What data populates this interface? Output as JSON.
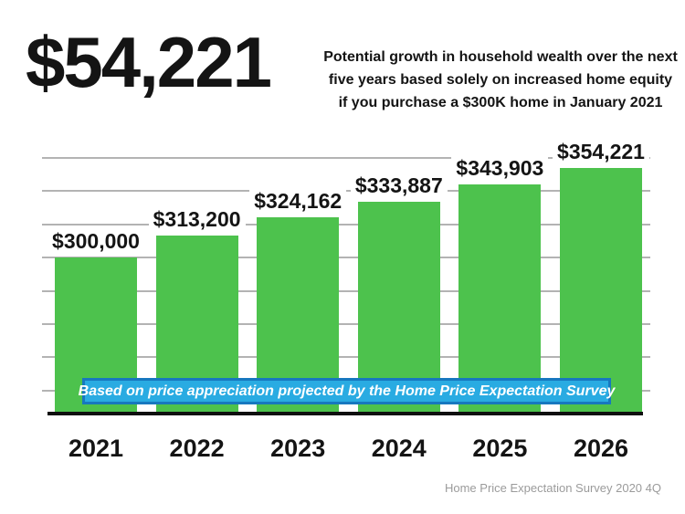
{
  "headline": {
    "value": "$54,221"
  },
  "subtitle_lines": [
    "Potential growth in household wealth over the next",
    "five years based solely on increased home equity",
    "if you purchase a $300K home in January 2021"
  ],
  "banner": {
    "text": "Based on price appreciation projected by the Home Price Expectation Survey",
    "bg_color": "#29abe2",
    "border_color": "#1778bf",
    "text_color": "#ffffff"
  },
  "footer": {
    "source_text": "Home Price Expectation Survey 2020 4Q"
  },
  "colors": {
    "bar_green": "#4dc24d",
    "gridline": "#b3b3b3",
    "axis_line": "#0f0f0f",
    "label_text": "#141414",
    "footer_text": "#9b9b9b"
  },
  "chart_data": {
    "type": "bar",
    "title": "$54,221",
    "subtitle": "Potential growth in household wealth over the next five years based solely on increased home equity if you purchase a $300K home in January 2021",
    "categories": [
      "2021",
      "2022",
      "2023",
      "2024",
      "2025",
      "2026"
    ],
    "values": [
      300000,
      313200,
      324162,
      333887,
      343903,
      354221
    ],
    "value_labels": [
      "$300,000",
      "$313,200",
      "$324,162",
      "$333,887",
      "$343,903",
      "$354,221"
    ],
    "xlabel": "",
    "ylabel": "",
    "ylim": [
      205000,
      365000
    ],
    "gridline_values": [
      220000,
      240000,
      260000,
      280000,
      300000,
      320000,
      340000,
      360000
    ],
    "grid": true,
    "legend_position": "none",
    "bar_color": "#4dc24d",
    "annotation": "Based on price appreciation projected by the Home Price Expectation Survey",
    "source": "Home Price Expectation Survey 2020 4Q"
  }
}
